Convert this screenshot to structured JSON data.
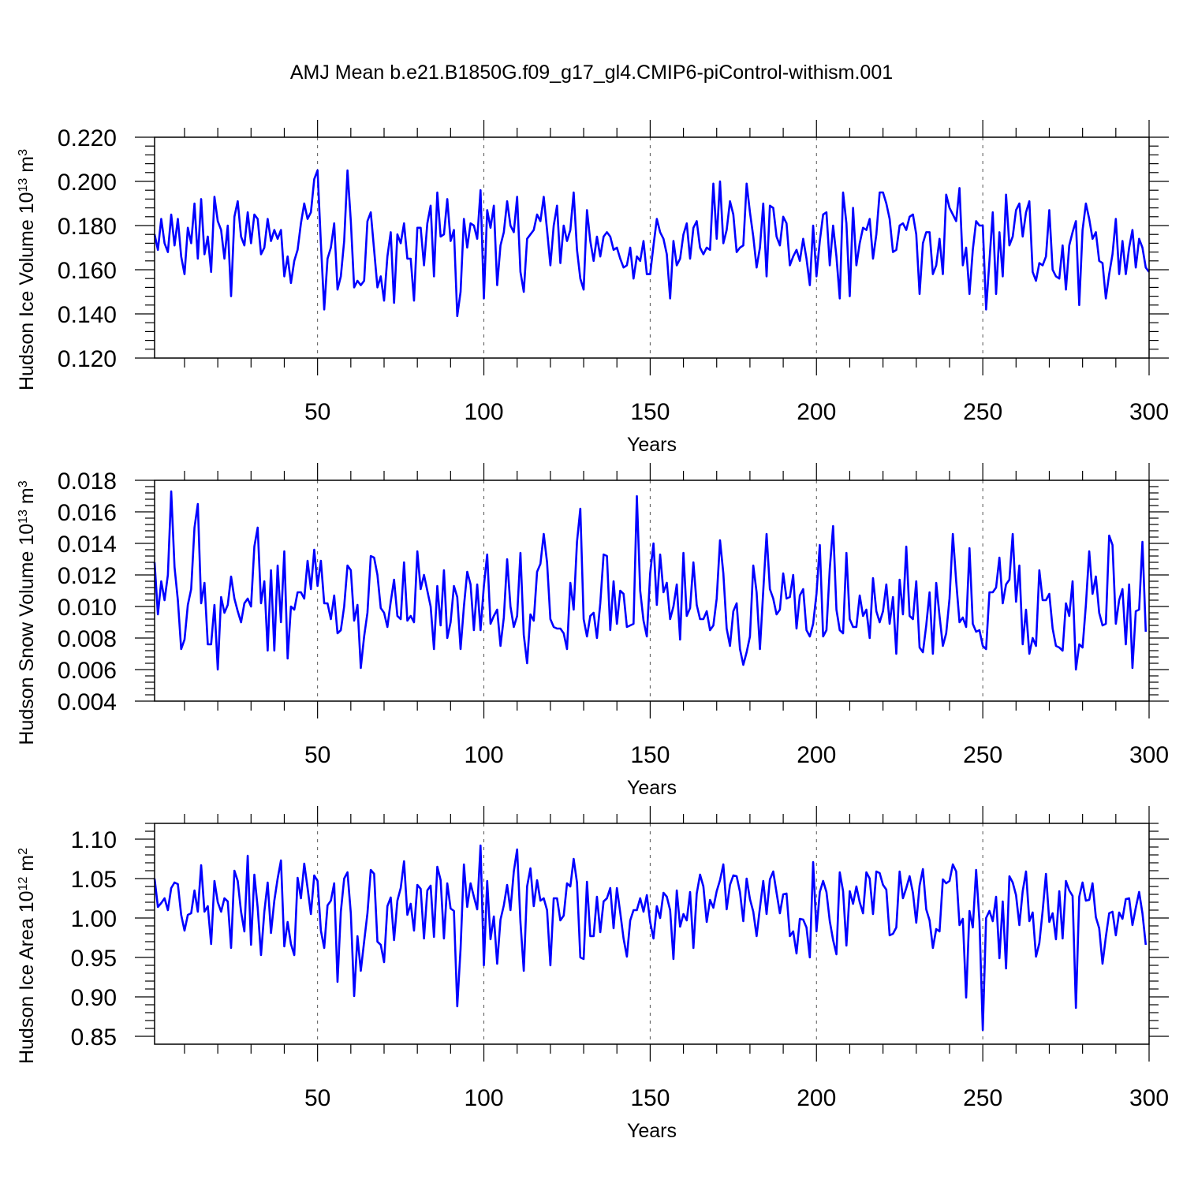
{
  "title": "AMJ Mean b.e21.B1850G.f09_g17_gl4.CMIP6-piControl-withism.001",
  "colors": {
    "series": "#0000ff",
    "axis": "#000000",
    "grid": "#555555"
  },
  "chart_data": [
    {
      "type": "line",
      "ylabel": "Hudson Ice Volume",
      "yunit_base": "10",
      "yunit_exp": "13",
      "yunit_tail": "m",
      "yunit_tail_exp": "3",
      "xlabel": "Years",
      "xlim": [
        1,
        300
      ],
      "ylim": [
        0.12,
        0.22
      ],
      "xticks": [
        50,
        100,
        150,
        200,
        250,
        300
      ],
      "xtick_labels": [
        "50",
        "100",
        "150",
        "200",
        "250",
        "300"
      ],
      "yticks": [
        0.12,
        0.14,
        0.16,
        0.18,
        0.2,
        0.22
      ],
      "ytick_labels": [
        "0.120",
        "0.140",
        "0.160",
        "0.180",
        "0.200",
        "0.220"
      ],
      "grid": "vertical dashed at major x ticks",
      "y": [
        0.176,
        0.169,
        0.183,
        0.172,
        0.168,
        0.185,
        0.171,
        0.183,
        0.166,
        0.158,
        0.179,
        0.172,
        0.19,
        0.165,
        0.192,
        0.167,
        0.175,
        0.159,
        0.193,
        0.182,
        0.178,
        0.165,
        0.18,
        0.148,
        0.184,
        0.191,
        0.175,
        0.171,
        0.186,
        0.172,
        0.185,
        0.183,
        0.167,
        0.17,
        0.183,
        0.173,
        0.178,
        0.174,
        0.178,
        0.157,
        0.166,
        0.154,
        0.164,
        0.169,
        0.181,
        0.19,
        0.183,
        0.186,
        0.201,
        0.205,
        0.172,
        0.142,
        0.165,
        0.17,
        0.181,
        0.151,
        0.157,
        0.173,
        0.205,
        0.182,
        0.152,
        0.155,
        0.153,
        0.155,
        0.182,
        0.186,
        0.169,
        0.152,
        0.157,
        0.146,
        0.166,
        0.177,
        0.145,
        0.176,
        0.172,
        0.181,
        0.165,
        0.165,
        0.146,
        0.179,
        0.179,
        0.162,
        0.181,
        0.189,
        0.157,
        0.195,
        0.175,
        0.176,
        0.192,
        0.173,
        0.178,
        0.139,
        0.15,
        0.183,
        0.17,
        0.181,
        0.18,
        0.174,
        0.196,
        0.147,
        0.187,
        0.179,
        0.189,
        0.153,
        0.171,
        0.177,
        0.191,
        0.18,
        0.177,
        0.193,
        0.159,
        0.15,
        0.174,
        0.176,
        0.178,
        0.185,
        0.182,
        0.193,
        0.178,
        0.162,
        0.18,
        0.189,
        0.163,
        0.18,
        0.173,
        0.178,
        0.195,
        0.169,
        0.156,
        0.151,
        0.187,
        0.173,
        0.164,
        0.175,
        0.166,
        0.175,
        0.177,
        0.175,
        0.169,
        0.17,
        0.165,
        0.161,
        0.162,
        0.17,
        0.156,
        0.166,
        0.164,
        0.173,
        0.158,
        0.158,
        0.171,
        0.183,
        0.177,
        0.174,
        0.167,
        0.147,
        0.173,
        0.162,
        0.165,
        0.176,
        0.181,
        0.165,
        0.179,
        0.182,
        0.17,
        0.167,
        0.17,
        0.169,
        0.199,
        0.174,
        0.2,
        0.172,
        0.178,
        0.191,
        0.185,
        0.168,
        0.17,
        0.171,
        0.199,
        0.186,
        0.175,
        0.161,
        0.17,
        0.19,
        0.157,
        0.189,
        0.188,
        0.175,
        0.171,
        0.184,
        0.181,
        0.162,
        0.166,
        0.169,
        0.164,
        0.174,
        0.165,
        0.153,
        0.18,
        0.157,
        0.173,
        0.185,
        0.186,
        0.162,
        0.18,
        0.166,
        0.147,
        0.195,
        0.181,
        0.148,
        0.188,
        0.162,
        0.172,
        0.179,
        0.178,
        0.183,
        0.165,
        0.176,
        0.195,
        0.195,
        0.19,
        0.183,
        0.168,
        0.169,
        0.18,
        0.181,
        0.178,
        0.184,
        0.185,
        0.176,
        0.149,
        0.172,
        0.177,
        0.177,
        0.158,
        0.162,
        0.174,
        0.158,
        0.194,
        0.188,
        0.185,
        0.182,
        0.197,
        0.162,
        0.17,
        0.149,
        0.169,
        0.182,
        0.18,
        0.18,
        0.142,
        0.164,
        0.186,
        0.149,
        0.177,
        0.157,
        0.194,
        0.171,
        0.175,
        0.187,
        0.19,
        0.175,
        0.186,
        0.191,
        0.159,
        0.155,
        0.163,
        0.162,
        0.166,
        0.187,
        0.16,
        0.157,
        0.156,
        0.171,
        0.151,
        0.171,
        0.177,
        0.182,
        0.144,
        0.178,
        0.19,
        0.183,
        0.174,
        0.177,
        0.164,
        0.163,
        0.147,
        0.158,
        0.167,
        0.183,
        0.158,
        0.173,
        0.158,
        0.17,
        0.178,
        0.161,
        0.174,
        0.17,
        0.161,
        0.159
      ]
    },
    {
      "type": "line",
      "ylabel": "Hudson Snow Volume",
      "yunit_base": "10",
      "yunit_exp": "13",
      "yunit_tail": "m",
      "yunit_tail_exp": "3",
      "xlabel": "Years",
      "xlim": [
        1,
        300
      ],
      "ylim": [
        0.004,
        0.018
      ],
      "xticks": [
        50,
        100,
        150,
        200,
        250,
        300
      ],
      "xtick_labels": [
        "50",
        "100",
        "150",
        "200",
        "250",
        "300"
      ],
      "yticks": [
        0.004,
        0.006,
        0.008,
        0.01,
        0.012,
        0.014,
        0.016,
        0.018
      ],
      "ytick_labels": [
        "0.004",
        "0.006",
        "0.008",
        "0.010",
        "0.012",
        "0.014",
        "0.016",
        "0.018"
      ],
      "grid": "vertical dashed at major x ticks",
      "y": [
        0.0128,
        0.0095,
        0.0116,
        0.0104,
        0.012,
        0.0173,
        0.0125,
        0.0104,
        0.0073,
        0.0079,
        0.0101,
        0.0111,
        0.015,
        0.0165,
        0.0102,
        0.0115,
        0.0076,
        0.0076,
        0.0101,
        0.006,
        0.0106,
        0.0096,
        0.0101,
        0.0119,
        0.0105,
        0.0097,
        0.009,
        0.0102,
        0.0105,
        0.01,
        0.0138,
        0.015,
        0.0102,
        0.0116,
        0.0072,
        0.0123,
        0.0072,
        0.0126,
        0.009,
        0.0135,
        0.0067,
        0.01,
        0.0098,
        0.0109,
        0.0109,
        0.0105,
        0.0129,
        0.0111,
        0.0136,
        0.0113,
        0.0129,
        0.0102,
        0.0102,
        0.0092,
        0.0107,
        0.0083,
        0.0085,
        0.01,
        0.0126,
        0.0123,
        0.0091,
        0.0101,
        0.0061,
        0.0081,
        0.0096,
        0.0132,
        0.0131,
        0.012,
        0.0099,
        0.0096,
        0.0087,
        0.0103,
        0.0117,
        0.0094,
        0.0092,
        0.0128,
        0.0091,
        0.0094,
        0.009,
        0.0135,
        0.0111,
        0.012,
        0.011,
        0.01,
        0.0073,
        0.0113,
        0.0088,
        0.0123,
        0.008,
        0.009,
        0.0113,
        0.0106,
        0.0073,
        0.01,
        0.0122,
        0.0114,
        0.0085,
        0.0114,
        0.0085,
        0.0113,
        0.0133,
        0.0089,
        0.0094,
        0.0098,
        0.0075,
        0.0093,
        0.013,
        0.01,
        0.0087,
        0.0094,
        0.0134,
        0.0082,
        0.0064,
        0.0095,
        0.0091,
        0.0122,
        0.0127,
        0.0146,
        0.0128,
        0.0092,
        0.0087,
        0.0086,
        0.0086,
        0.0083,
        0.0073,
        0.0115,
        0.0098,
        0.0141,
        0.0162,
        0.0092,
        0.0081,
        0.0094,
        0.0096,
        0.008,
        0.0102,
        0.0133,
        0.0132,
        0.0085,
        0.0116,
        0.0089,
        0.011,
        0.0108,
        0.0087,
        0.0088,
        0.0089,
        0.017,
        0.011,
        0.0091,
        0.0081,
        0.0121,
        0.014,
        0.0101,
        0.0133,
        0.0109,
        0.0115,
        0.0092,
        0.01,
        0.0114,
        0.0079,
        0.0134,
        0.0094,
        0.0099,
        0.0128,
        0.0101,
        0.0092,
        0.0092,
        0.0097,
        0.0085,
        0.0088,
        0.0105,
        0.0142,
        0.0121,
        0.0086,
        0.0075,
        0.0097,
        0.0102,
        0.0073,
        0.0063,
        0.0071,
        0.0081,
        0.0126,
        0.0109,
        0.0073,
        0.011,
        0.0146,
        0.0111,
        0.0105,
        0.0095,
        0.0098,
        0.0121,
        0.0105,
        0.0106,
        0.012,
        0.0086,
        0.0107,
        0.0111,
        0.0085,
        0.0081,
        0.0089,
        0.0108,
        0.0139,
        0.0081,
        0.0085,
        0.0124,
        0.0151,
        0.0098,
        0.0085,
        0.0083,
        0.0134,
        0.0092,
        0.0087,
        0.0087,
        0.0107,
        0.0094,
        0.0098,
        0.008,
        0.0118,
        0.0097,
        0.009,
        0.0097,
        0.0114,
        0.0089,
        0.0106,
        0.007,
        0.0117,
        0.0095,
        0.0138,
        0.0094,
        0.0092,
        0.0116,
        0.0074,
        0.0071,
        0.0088,
        0.0109,
        0.007,
        0.0115,
        0.0094,
        0.0075,
        0.0083,
        0.0105,
        0.0146,
        0.0116,
        0.009,
        0.0093,
        0.0087,
        0.0137,
        0.0089,
        0.0084,
        0.0085,
        0.0075,
        0.0073,
        0.0109,
        0.0109,
        0.0112,
        0.0131,
        0.0102,
        0.0114,
        0.0117,
        0.0146,
        0.0103,
        0.0126,
        0.0076,
        0.0098,
        0.007,
        0.008,
        0.0075,
        0.0123,
        0.0104,
        0.0104,
        0.0108,
        0.0086,
        0.0075,
        0.0074,
        0.0072,
        0.0102,
        0.0094,
        0.0116,
        0.006,
        0.0076,
        0.0074,
        0.0101,
        0.0135,
        0.0108,
        0.0119,
        0.0096,
        0.0088,
        0.0089,
        0.0145,
        0.0139,
        0.0089,
        0.0104,
        0.0111,
        0.0076,
        0.0114,
        0.0061,
        0.0097,
        0.0098,
        0.0141,
        0.0084
      ]
    },
    {
      "type": "line",
      "ylabel": "Hudson Ice Area",
      "yunit_base": "10",
      "yunit_exp": "12",
      "yunit_tail": "m",
      "yunit_tail_exp": "2",
      "xlabel": "Years",
      "xlim": [
        1,
        300
      ],
      "ylim": [
        0.84,
        1.12
      ],
      "xticks": [
        50,
        100,
        150,
        200,
        250,
        300
      ],
      "xtick_labels": [
        "50",
        "100",
        "150",
        "200",
        "250",
        "300"
      ],
      "yticks": [
        0.85,
        0.9,
        0.95,
        1.0,
        1.05,
        1.1
      ],
      "ytick_labels": [
        "0.85",
        "0.90",
        "0.95",
        "1.00",
        "1.05",
        "1.10"
      ],
      "grid": "vertical dashed at major x ticks",
      "y": [
        1.05,
        1.014,
        1.019,
        1.025,
        1.01,
        1.038,
        1.045,
        1.043,
        1.004,
        0.984,
        1.004,
        1.006,
        1.035,
        1.008,
        1.067,
        1.008,
        1.015,
        0.967,
        1.047,
        1.02,
        1.008,
        1.025,
        1.021,
        0.962,
        1.06,
        1.047,
        1.008,
        0.983,
        1.079,
        0.966,
        1.055,
        1.013,
        0.953,
        1.008,
        1.045,
        0.981,
        1.022,
        1.05,
        1.073,
        0.964,
        0.995,
        0.967,
        0.953,
        1.051,
        1.025,
        1.069,
        1.038,
        1.005,
        1.054,
        1.047,
        0.984,
        0.962,
        1.016,
        1.022,
        1.044,
        0.919,
        1.008,
        1.05,
        1.058,
        1.006,
        0.901,
        0.977,
        0.933,
        0.97,
        1.006,
        1.061,
        1.056,
        0.97,
        0.966,
        0.944,
        1.015,
        1.026,
        0.972,
        1.022,
        1.038,
        1.072,
        1.004,
        1.018,
        0.984,
        1.042,
        1.037,
        0.974,
        1.035,
        1.041,
        0.976,
        1.065,
        1.048,
        0.974,
        1.044,
        1.012,
        1.009,
        0.888,
        0.961,
        1.068,
        1.014,
        1.044,
        1.027,
        1.011,
        1.092,
        0.94,
        1.047,
        0.973,
        1.002,
        0.942,
        0.998,
        1.016,
        1.042,
        1.01,
        1.059,
        1.087,
        0.995,
        0.933,
        1.04,
        1.063,
        1.015,
        1.048,
        1.022,
        1.025,
        1.01,
        0.94,
        1.025,
        1.025,
        0.997,
        1.003,
        1.044,
        1.04,
        1.075,
        1.045,
        0.95,
        0.948,
        1.046,
        0.977,
        0.977,
        1.027,
        0.982,
        1.021,
        1.025,
        1.038,
        0.987,
        1.038,
        1.007,
        0.974,
        0.951,
        0.997,
        1.01,
        1.01,
        1.025,
        1.008,
        1.029,
        0.995,
        0.974,
        1.015,
        1.0,
        1.032,
        1.027,
        1.01,
        0.948,
        1.035,
        0.989,
        1.005,
        0.997,
        1.033,
        0.962,
        1.031,
        1.055,
        1.04,
        0.995,
        1.023,
        1.013,
        1.034,
        1.048,
        1.068,
        1.011,
        1.042,
        1.054,
        1.053,
        1.033,
        0.996,
        1.05,
        1.024,
        1.008,
        0.977,
        1.013,
        1.047,
        1.005,
        1.049,
        1.059,
        1.032,
        1.006,
        1.03,
        1.031,
        0.977,
        0.983,
        0.955,
        0.999,
        0.998,
        0.988,
        0.95,
        1.071,
        0.983,
        1.033,
        1.047,
        1.033,
        0.996,
        0.972,
        0.954,
        1.058,
        1.034,
        0.965,
        1.034,
        1.018,
        1.04,
        1.02,
        1.006,
        1.058,
        1.05,
        1.005,
        1.059,
        1.057,
        1.042,
        1.036,
        0.978,
        0.98,
        0.988,
        1.059,
        1.025,
        1.038,
        1.053,
        1.032,
        0.994,
        1.041,
        1.062,
        1.011,
        0.997,
        0.962,
        0.986,
        0.983,
        1.049,
        1.044,
        1.047,
        1.068,
        1.059,
        0.991,
        0.999,
        0.899,
        1.009,
        0.988,
        1.061,
        0.996,
        0.858,
        1.0,
        1.009,
        0.996,
        1.027,
        0.949,
        1.021,
        0.936,
        1.053,
        1.045,
        1.029,
        0.991,
        1.034,
        1.059,
        0.996,
        1.007,
        0.951,
        0.968,
        1.009,
        1.056,
        0.995,
        1.006,
        0.973,
        1.034,
        0.974,
        1.047,
        1.035,
        1.028,
        0.886,
        1.027,
        1.045,
        1.022,
        1.023,
        1.044,
        1.001,
        0.987,
        0.942,
        0.976,
        1.006,
        1.008,
        0.978,
        1.007,
        0.999,
        1.024,
        1.025,
        0.991,
        1.013,
        1.033,
        1.006,
        0.966
      ]
    }
  ]
}
